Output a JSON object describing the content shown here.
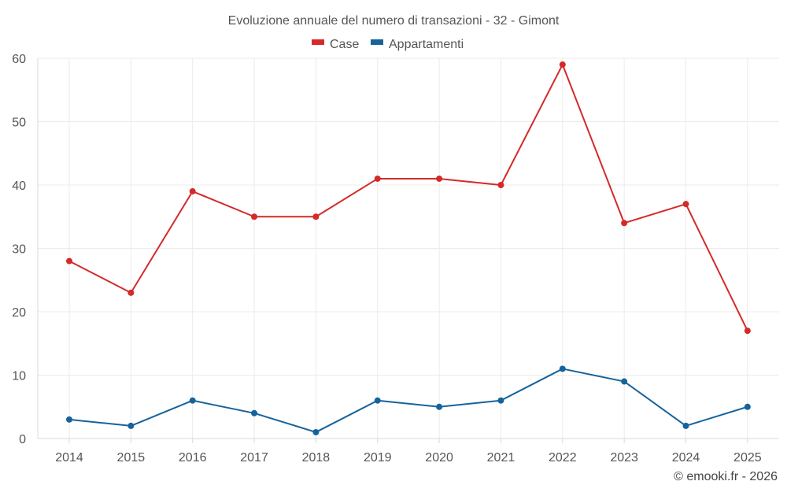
{
  "chart_data": {
    "type": "line",
    "title": "Evoluzione annuale del numero di transazioni - 32 - Gimont",
    "xlabel": "",
    "ylabel": "",
    "legend_position": "top-center",
    "grid": true,
    "categories": [
      "2014",
      "2015",
      "2016",
      "2017",
      "2018",
      "2019",
      "2020",
      "2021",
      "2022",
      "2023",
      "2024",
      "2025"
    ],
    "ylim": [
      0,
      60
    ],
    "yticks": [
      0,
      10,
      20,
      30,
      40,
      50,
      60
    ],
    "series": [
      {
        "name": "Case",
        "color": "#d42a2a",
        "values": [
          28,
          23,
          39,
          35,
          35,
          41,
          41,
          40,
          59,
          34,
          37,
          17
        ]
      },
      {
        "name": "Appartamenti",
        "color": "#16639b",
        "values": [
          3,
          2,
          6,
          4,
          1,
          6,
          5,
          6,
          11,
          9,
          2,
          5
        ]
      }
    ]
  },
  "credit": "© emooki.fr - 2026"
}
